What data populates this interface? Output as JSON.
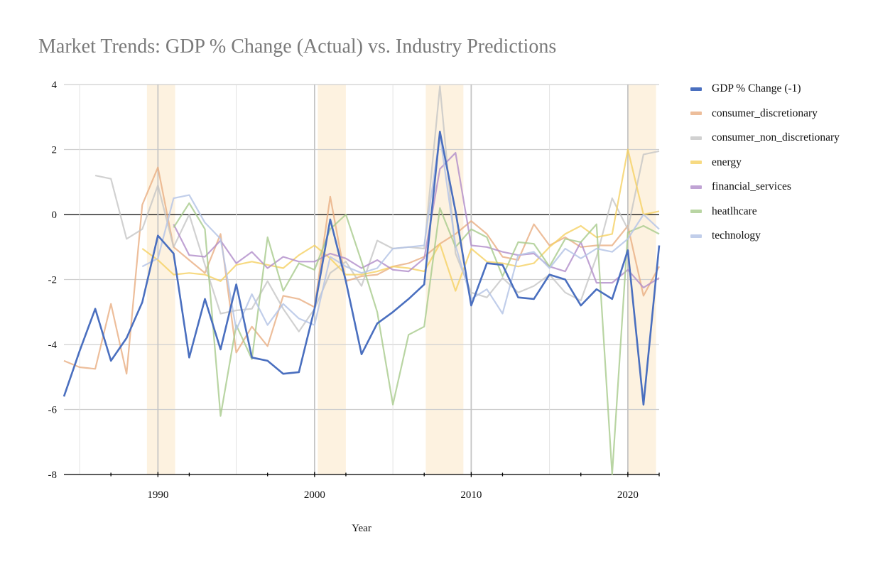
{
  "chart_data": {
    "type": "line",
    "title": "Market Trends: GDP % Change (Actual) vs. Industry Predictions",
    "xlabel": "Year",
    "ylabel": "",
    "xlim": [
      1984,
      2022
    ],
    "ylim": [
      -8,
      4
    ],
    "x_ticks": [
      1990,
      2000,
      2010,
      2020
    ],
    "y_ticks": [
      -8,
      -6,
      -4,
      -2,
      0,
      2,
      4
    ],
    "grid": true,
    "legend_position": "right",
    "recession_bands": [
      [
        1989.3,
        1991.1
      ],
      [
        2000.2,
        2002.0
      ],
      [
        2007.1,
        2009.5
      ],
      [
        2020.0,
        2021.8
      ]
    ],
    "x": [
      1984,
      1985,
      1986,
      1987,
      1988,
      1989,
      1990,
      1991,
      1992,
      1993,
      1994,
      1995,
      1996,
      1997,
      1998,
      1999,
      2000,
      2001,
      2002,
      2003,
      2004,
      2005,
      2006,
      2007,
      2008,
      2009,
      2010,
      2011,
      2012,
      2013,
      2014,
      2015,
      2016,
      2017,
      2018,
      2019,
      2020,
      2021,
      2022
    ],
    "series": [
      {
        "name": "GDP % Change  (-1)",
        "color": "#4a6fbf",
        "opacity": 1.0,
        "width": 2.6,
        "values": [
          -5.6,
          -4.2,
          -2.9,
          -4.5,
          -3.8,
          -2.7,
          -0.65,
          -1.2,
          -4.4,
          -2.6,
          -4.15,
          -2.15,
          -4.4,
          -4.5,
          -4.9,
          -4.85,
          -2.9,
          -0.15,
          -2.05,
          -4.3,
          -3.35,
          -3.0,
          -2.6,
          -2.15,
          2.55,
          0.1,
          -2.8,
          -1.5,
          -1.55,
          -2.55,
          -2.6,
          -1.85,
          -2.0,
          -2.8,
          -2.3,
          -2.6,
          -1.1,
          -5.85,
          -0.95
        ]
      },
      {
        "name": "consumer_discretionary",
        "color": "#e8ae82",
        "opacity": 0.8,
        "width": 2.2,
        "values": [
          -4.5,
          -4.7,
          -4.75,
          -2.75,
          -4.9,
          0.3,
          1.45,
          -1.0,
          -1.4,
          -1.8,
          -0.6,
          -4.25,
          -3.45,
          -4.05,
          -2.5,
          -2.6,
          -2.85,
          0.55,
          -2.05,
          -1.9,
          -1.85,
          -1.6,
          -1.5,
          -1.3,
          -0.9,
          -0.6,
          -0.2,
          -0.6,
          -1.3,
          -1.4,
          -0.3,
          -0.95,
          -0.7,
          -1.0,
          -0.95,
          -0.95,
          -0.35,
          -2.5,
          -1.6
        ]
      },
      {
        "name": "consumer_non_discretionary",
        "color": "#c6c6c6",
        "opacity": 0.8,
        "width": 2.2,
        "values": [
          null,
          null,
          1.2,
          1.1,
          -0.75,
          -0.45,
          0.9,
          -1.0,
          0.0,
          -1.55,
          -3.05,
          -2.95,
          -2.9,
          -2.05,
          -2.9,
          -3.6,
          -2.9,
          -1.8,
          -1.45,
          -2.2,
          -0.8,
          -1.05,
          -1.0,
          -1.05,
          3.95,
          -1.2,
          -2.4,
          -2.55,
          -1.95,
          -2.4,
          -2.2,
          -1.85,
          -2.4,
          -2.65,
          -1.3,
          0.5,
          -0.45,
          1.85,
          1.95
        ]
      },
      {
        "name": "energy",
        "color": "#f5d163",
        "opacity": 0.8,
        "width": 2.2,
        "values": [
          null,
          null,
          null,
          null,
          null,
          -1.05,
          -1.4,
          -1.85,
          -1.8,
          -1.85,
          -2.05,
          -1.55,
          -1.45,
          -1.55,
          -1.65,
          -1.25,
          -0.95,
          -1.35,
          -1.85,
          -1.85,
          -1.75,
          -1.6,
          -1.65,
          -1.75,
          -0.9,
          -2.35,
          -1.05,
          -1.45,
          -1.5,
          -1.6,
          -1.5,
          -1.0,
          -0.6,
          -0.35,
          -0.7,
          -0.6,
          2.0,
          0.0,
          0.1
        ]
      },
      {
        "name": "financial_services",
        "color": "#b08cc9",
        "opacity": 0.8,
        "width": 2.2,
        "values": [
          null,
          null,
          null,
          null,
          null,
          null,
          null,
          -0.3,
          -1.25,
          -1.3,
          -0.8,
          -1.5,
          -1.15,
          -1.65,
          -1.3,
          -1.45,
          -1.45,
          -1.2,
          -1.35,
          -1.65,
          -1.4,
          -1.7,
          -1.75,
          -1.35,
          1.4,
          1.9,
          -0.95,
          -1.0,
          -1.15,
          -1.25,
          -1.2,
          -1.6,
          -1.75,
          -0.85,
          -2.1,
          -2.1,
          -1.7,
          -2.25,
          -1.95
        ]
      },
      {
        "name": "heatlhcare",
        "color": "#a8ca8c",
        "opacity": 0.8,
        "width": 2.2,
        "values": [
          null,
          null,
          null,
          null,
          null,
          null,
          null,
          -0.4,
          0.35,
          -0.45,
          -6.2,
          -3.4,
          -4.45,
          -0.7,
          -2.35,
          -1.5,
          -1.7,
          -0.45,
          0.0,
          -1.45,
          -3.0,
          -5.85,
          -3.7,
          -3.45,
          0.2,
          -1.0,
          -0.45,
          -0.7,
          -1.9,
          -0.85,
          -0.9,
          -1.6,
          -0.75,
          -0.85,
          -0.3,
          -8.0,
          -0.55,
          -0.35,
          -0.6
        ]
      },
      {
        "name": "technology",
        "color": "#b6c6e6",
        "opacity": 0.85,
        "width": 2.2,
        "values": [
          null,
          null,
          null,
          null,
          null,
          -1.6,
          -1.35,
          0.5,
          0.6,
          -0.25,
          -0.75,
          -3.55,
          -2.45,
          -3.4,
          -2.75,
          -3.2,
          -3.4,
          -1.3,
          -1.6,
          -1.8,
          -1.65,
          -1.05,
          -1.0,
          -0.95,
          2.45,
          -0.95,
          -2.6,
          -2.3,
          -3.05,
          -1.25,
          -1.15,
          -1.65,
          -1.05,
          -1.35,
          -1.05,
          -1.15,
          -0.75,
          0.0,
          -0.45
        ]
      }
    ]
  }
}
